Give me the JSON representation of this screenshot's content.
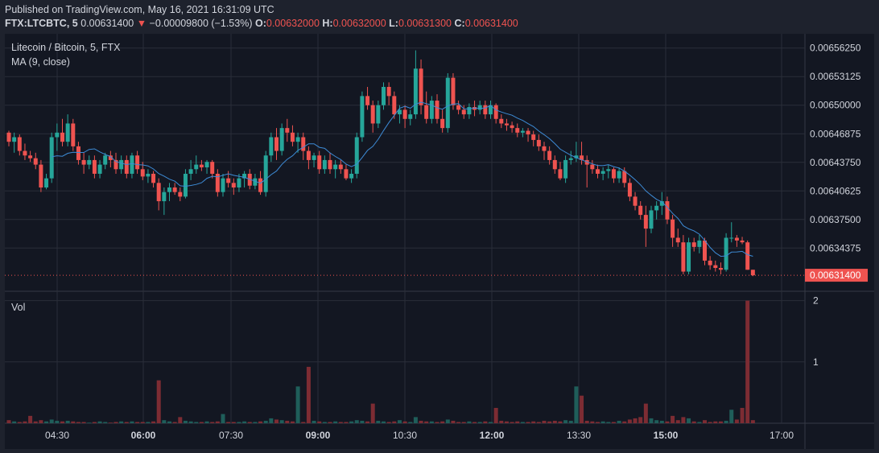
{
  "header": {
    "published": "Published on TradingView.com, May 16, 2021 16:31:09 UTC",
    "symbol": "FTX:LTCBTC, 5",
    "last": "0.00631400",
    "change_arrow": "▼",
    "change": "−0.00009800 (−1.53%)",
    "o_label": "O:",
    "o_value": "0.00632000",
    "h_label": "H:",
    "h_value": "0.00632000",
    "l_label": "L:",
    "l_value": "0.00631300",
    "c_label": "C:",
    "c_value": "0.00631400"
  },
  "legend": {
    "title": "Litecoin / Bitcoin, 5, FTX",
    "ma": "MA (9, close)",
    "volume": "Vol"
  },
  "colors": {
    "background": "#131722",
    "grid": "#2a2e39",
    "up": "#26a69a",
    "down": "#ef5350",
    "ma": "#3d8bd6",
    "vol_up": "#1f5e5a",
    "vol_down": "#7d2c33"
  },
  "chart_data": {
    "type": "candlestick",
    "price_axis": {
      "ticks": [
        "0.00656250",
        "0.00653125",
        "0.00650000",
        "0.00646875",
        "0.00643750",
        "0.00640625",
        "0.00637500",
        "0.00634375"
      ],
      "ylim": [
        0.0063,
        0.0065781
      ],
      "last_price_label": "0.00631400",
      "last_price": 0.006314
    },
    "time_axis": {
      "ticks": [
        "04:30",
        "06:00",
        "07:30",
        "09:00",
        "10:30",
        "12:00",
        "13:30",
        "15:00",
        "17:00"
      ],
      "bold": [
        false,
        true,
        false,
        true,
        false,
        true,
        false,
        true,
        false
      ]
    },
    "volume_axis": {
      "ticks": [
        "2",
        "1"
      ],
      "ylim": [
        0,
        2.1
      ]
    },
    "interval": "5",
    "candles": [
      {
        "o": 0.00647,
        "h": 0.006472,
        "l": 0.006455,
        "c": 0.00646,
        "v": 0.05
      },
      {
        "o": 0.00646,
        "h": 0.00647,
        "l": 0.006448,
        "c": 0.006465,
        "v": 0.03
      },
      {
        "o": 0.006465,
        "h": 0.006468,
        "l": 0.006445,
        "c": 0.00645,
        "v": 0.02
      },
      {
        "o": 0.00645,
        "h": 0.006458,
        "l": 0.00644,
        "c": 0.006445,
        "v": 0.03
      },
      {
        "o": 0.006445,
        "h": 0.00645,
        "l": 0.006438,
        "c": 0.006442,
        "v": 0.12
      },
      {
        "o": 0.006442,
        "h": 0.006448,
        "l": 0.00643,
        "c": 0.006435,
        "v": 0.03
      },
      {
        "o": 0.006435,
        "h": 0.00644,
        "l": 0.006405,
        "c": 0.00641,
        "v": 0.05
      },
      {
        "o": 0.00641,
        "h": 0.006425,
        "l": 0.006408,
        "c": 0.00642,
        "v": 0.03
      },
      {
        "o": 0.00642,
        "h": 0.00647,
        "l": 0.006415,
        "c": 0.006465,
        "v": 0.06
      },
      {
        "o": 0.006465,
        "h": 0.00648,
        "l": 0.00645,
        "c": 0.00647,
        "v": 0.04
      },
      {
        "o": 0.00647,
        "h": 0.006485,
        "l": 0.006455,
        "c": 0.00646,
        "v": 0.03
      },
      {
        "o": 0.00646,
        "h": 0.00649,
        "l": 0.006455,
        "c": 0.00648,
        "v": 0.04
      },
      {
        "o": 0.00648,
        "h": 0.006485,
        "l": 0.00645,
        "c": 0.006455,
        "v": 0.03
      },
      {
        "o": 0.006455,
        "h": 0.00646,
        "l": 0.006435,
        "c": 0.00644,
        "v": 0.02
      },
      {
        "o": 0.00644,
        "h": 0.006448,
        "l": 0.006425,
        "c": 0.006435,
        "v": 0.02
      },
      {
        "o": 0.006435,
        "h": 0.006445,
        "l": 0.00643,
        "c": 0.00644,
        "v": 0.01
      },
      {
        "o": 0.00644,
        "h": 0.006445,
        "l": 0.00642,
        "c": 0.006425,
        "v": 0.02
      },
      {
        "o": 0.006425,
        "h": 0.00644,
        "l": 0.00642,
        "c": 0.006435,
        "v": 0.03
      },
      {
        "o": 0.006435,
        "h": 0.006448,
        "l": 0.00643,
        "c": 0.006445,
        "v": 0.02
      },
      {
        "o": 0.006445,
        "h": 0.00645,
        "l": 0.006432,
        "c": 0.00644,
        "v": 0.01
      },
      {
        "o": 0.00644,
        "h": 0.006448,
        "l": 0.006425,
        "c": 0.00643,
        "v": 0.02
      },
      {
        "o": 0.00643,
        "h": 0.006445,
        "l": 0.006425,
        "c": 0.00644,
        "v": 0.03
      },
      {
        "o": 0.00644,
        "h": 0.006445,
        "l": 0.00642,
        "c": 0.006425,
        "v": 0.02
      },
      {
        "o": 0.006425,
        "h": 0.006448,
        "l": 0.00642,
        "c": 0.006445,
        "v": 0.03
      },
      {
        "o": 0.006445,
        "h": 0.00645,
        "l": 0.006425,
        "c": 0.00643,
        "v": 0.02
      },
      {
        "o": 0.00643,
        "h": 0.006438,
        "l": 0.006418,
        "c": 0.006422,
        "v": 0.02
      },
      {
        "o": 0.006422,
        "h": 0.00643,
        "l": 0.006415,
        "c": 0.006425,
        "v": 0.02
      },
      {
        "o": 0.006425,
        "h": 0.006428,
        "l": 0.00641,
        "c": 0.006415,
        "v": 0.03
      },
      {
        "o": 0.006415,
        "h": 0.00642,
        "l": 0.006385,
        "c": 0.006395,
        "v": 0.7
      },
      {
        "o": 0.006395,
        "h": 0.00641,
        "l": 0.00638,
        "c": 0.006405,
        "v": 0.05
      },
      {
        "o": 0.006405,
        "h": 0.006415,
        "l": 0.006395,
        "c": 0.00641,
        "v": 0.03
      },
      {
        "o": 0.00641,
        "h": 0.006415,
        "l": 0.006402,
        "c": 0.006405,
        "v": 0.02
      },
      {
        "o": 0.006405,
        "h": 0.00641,
        "l": 0.006395,
        "c": 0.0064,
        "v": 0.1
      },
      {
        "o": 0.0064,
        "h": 0.00643,
        "l": 0.006398,
        "c": 0.006425,
        "v": 0.04
      },
      {
        "o": 0.006425,
        "h": 0.00644,
        "l": 0.006418,
        "c": 0.00643,
        "v": 0.03
      },
      {
        "o": 0.00643,
        "h": 0.006445,
        "l": 0.006425,
        "c": 0.006435,
        "v": 0.02
      },
      {
        "o": 0.006435,
        "h": 0.00644,
        "l": 0.006428,
        "c": 0.006432,
        "v": 0.02
      },
      {
        "o": 0.006432,
        "h": 0.00644,
        "l": 0.006425,
        "c": 0.006438,
        "v": 0.03
      },
      {
        "o": 0.006438,
        "h": 0.00644,
        "l": 0.00642,
        "c": 0.006425,
        "v": 0.02
      },
      {
        "o": 0.006425,
        "h": 0.00643,
        "l": 0.0064,
        "c": 0.006405,
        "v": 0.03
      },
      {
        "o": 0.006405,
        "h": 0.006425,
        "l": 0.0064,
        "c": 0.00642,
        "v": 0.15
      },
      {
        "o": 0.00642,
        "h": 0.006428,
        "l": 0.00641,
        "c": 0.006415,
        "v": 0.02
      },
      {
        "o": 0.006415,
        "h": 0.00642,
        "l": 0.006402,
        "c": 0.00641,
        "v": 0.02
      },
      {
        "o": 0.00641,
        "h": 0.006425,
        "l": 0.006405,
        "c": 0.00642,
        "v": 0.02
      },
      {
        "o": 0.00642,
        "h": 0.006428,
        "l": 0.00641,
        "c": 0.006425,
        "v": 0.03
      },
      {
        "o": 0.006425,
        "h": 0.00643,
        "l": 0.006408,
        "c": 0.006412,
        "v": 0.02
      },
      {
        "o": 0.006412,
        "h": 0.006425,
        "l": 0.006408,
        "c": 0.00642,
        "v": 0.02
      },
      {
        "o": 0.00642,
        "h": 0.006428,
        "l": 0.006402,
        "c": 0.006405,
        "v": 0.03
      },
      {
        "o": 0.006405,
        "h": 0.00645,
        "l": 0.0064,
        "c": 0.006445,
        "v": 0.04
      },
      {
        "o": 0.006445,
        "h": 0.00647,
        "l": 0.006438,
        "c": 0.006465,
        "v": 0.08
      },
      {
        "o": 0.006465,
        "h": 0.006475,
        "l": 0.00644,
        "c": 0.00645,
        "v": 0.06
      },
      {
        "o": 0.00645,
        "h": 0.00648,
        "l": 0.006445,
        "c": 0.006475,
        "v": 0.05
      },
      {
        "o": 0.006475,
        "h": 0.006485,
        "l": 0.00646,
        "c": 0.00647,
        "v": 0.04
      },
      {
        "o": 0.00647,
        "h": 0.006478,
        "l": 0.006455,
        "c": 0.00646,
        "v": 0.03
      },
      {
        "o": 0.00646,
        "h": 0.00647,
        "l": 0.006448,
        "c": 0.006465,
        "v": 0.6
      },
      {
        "o": 0.006465,
        "h": 0.00647,
        "l": 0.00644,
        "c": 0.00645,
        "v": 0.02
      },
      {
        "o": 0.00645,
        "h": 0.006455,
        "l": 0.00643,
        "c": 0.00644,
        "v": 0.92
      },
      {
        "o": 0.00644,
        "h": 0.006448,
        "l": 0.006432,
        "c": 0.006445,
        "v": 0.04
      },
      {
        "o": 0.006445,
        "h": 0.00645,
        "l": 0.006425,
        "c": 0.00643,
        "v": 0.03
      },
      {
        "o": 0.00643,
        "h": 0.006445,
        "l": 0.006425,
        "c": 0.00644,
        "v": 0.02
      },
      {
        "o": 0.00644,
        "h": 0.006448,
        "l": 0.006425,
        "c": 0.00643,
        "v": 0.02
      },
      {
        "o": 0.00643,
        "h": 0.00644,
        "l": 0.00642,
        "c": 0.006435,
        "v": 0.03
      },
      {
        "o": 0.006435,
        "h": 0.00644,
        "l": 0.006425,
        "c": 0.00643,
        "v": 0.02
      },
      {
        "o": 0.00643,
        "h": 0.006435,
        "l": 0.006418,
        "c": 0.00642,
        "v": 0.02
      },
      {
        "o": 0.00642,
        "h": 0.00643,
        "l": 0.006415,
        "c": 0.006425,
        "v": 0.03
      },
      {
        "o": 0.006425,
        "h": 0.00647,
        "l": 0.00642,
        "c": 0.006465,
        "v": 0.05
      },
      {
        "o": 0.006465,
        "h": 0.006515,
        "l": 0.00646,
        "c": 0.00651,
        "v": 0.04
      },
      {
        "o": 0.00651,
        "h": 0.00652,
        "l": 0.006495,
        "c": 0.0065,
        "v": 0.03
      },
      {
        "o": 0.0065,
        "h": 0.006505,
        "l": 0.00647,
        "c": 0.00648,
        "v": 0.32
      },
      {
        "o": 0.00648,
        "h": 0.006505,
        "l": 0.006475,
        "c": 0.0065,
        "v": 0.04
      },
      {
        "o": 0.0065,
        "h": 0.006525,
        "l": 0.006495,
        "c": 0.00652,
        "v": 0.03
      },
      {
        "o": 0.00652,
        "h": 0.006525,
        "l": 0.0065,
        "c": 0.00651,
        "v": 0.02
      },
      {
        "o": 0.00651,
        "h": 0.006515,
        "l": 0.006485,
        "c": 0.00649,
        "v": 0.03
      },
      {
        "o": 0.00649,
        "h": 0.0065,
        "l": 0.00648,
        "c": 0.006495,
        "v": 0.05
      },
      {
        "o": 0.006495,
        "h": 0.0065,
        "l": 0.006475,
        "c": 0.006485,
        "v": 0.03
      },
      {
        "o": 0.006485,
        "h": 0.006495,
        "l": 0.006478,
        "c": 0.00649,
        "v": 0.02
      },
      {
        "o": 0.00649,
        "h": 0.00656,
        "l": 0.006485,
        "c": 0.00654,
        "v": 0.1
      },
      {
        "o": 0.00654,
        "h": 0.00655,
        "l": 0.00649,
        "c": 0.0065,
        "v": 0.04
      },
      {
        "o": 0.0065,
        "h": 0.006515,
        "l": 0.00648,
        "c": 0.006485,
        "v": 0.03
      },
      {
        "o": 0.006485,
        "h": 0.00651,
        "l": 0.00648,
        "c": 0.006505,
        "v": 0.03
      },
      {
        "o": 0.006505,
        "h": 0.006512,
        "l": 0.00648,
        "c": 0.006485,
        "v": 0.02
      },
      {
        "o": 0.006485,
        "h": 0.006495,
        "l": 0.00647,
        "c": 0.006475,
        "v": 0.03
      },
      {
        "o": 0.006475,
        "h": 0.006535,
        "l": 0.00647,
        "c": 0.00653,
        "v": 0.06
      },
      {
        "o": 0.00653,
        "h": 0.006535,
        "l": 0.006495,
        "c": 0.0065,
        "v": 0.04
      },
      {
        "o": 0.0065,
        "h": 0.006505,
        "l": 0.00649,
        "c": 0.006495,
        "v": 0.02
      },
      {
        "o": 0.006495,
        "h": 0.0065,
        "l": 0.006485,
        "c": 0.00649,
        "v": 0.02
      },
      {
        "o": 0.00649,
        "h": 0.006502,
        "l": 0.006485,
        "c": 0.006498,
        "v": 0.03
      },
      {
        "o": 0.006498,
        "h": 0.006505,
        "l": 0.006488,
        "c": 0.006495,
        "v": 0.02
      },
      {
        "o": 0.006495,
        "h": 0.006505,
        "l": 0.00649,
        "c": 0.0065,
        "v": 0.02
      },
      {
        "o": 0.0065,
        "h": 0.006505,
        "l": 0.006485,
        "c": 0.00649,
        "v": 0.03
      },
      {
        "o": 0.00649,
        "h": 0.006505,
        "l": 0.006485,
        "c": 0.0065,
        "v": 0.02
      },
      {
        "o": 0.0065,
        "h": 0.006502,
        "l": 0.00648,
        "c": 0.006485,
        "v": 0.25
      },
      {
        "o": 0.006485,
        "h": 0.00649,
        "l": 0.006475,
        "c": 0.00648,
        "v": 0.04
      },
      {
        "o": 0.00648,
        "h": 0.006485,
        "l": 0.006472,
        "c": 0.006478,
        "v": 0.03
      },
      {
        "o": 0.006478,
        "h": 0.006482,
        "l": 0.00647,
        "c": 0.006475,
        "v": 0.02
      },
      {
        "o": 0.006475,
        "h": 0.00648,
        "l": 0.006465,
        "c": 0.00647,
        "v": 0.03
      },
      {
        "o": 0.00647,
        "h": 0.006475,
        "l": 0.006465,
        "c": 0.006472,
        "v": 0.02
      },
      {
        "o": 0.006472,
        "h": 0.006475,
        "l": 0.00646,
        "c": 0.006468,
        "v": 0.02
      },
      {
        "o": 0.006468,
        "h": 0.006472,
        "l": 0.006455,
        "c": 0.006462,
        "v": 0.03
      },
      {
        "o": 0.006462,
        "h": 0.006468,
        "l": 0.00645,
        "c": 0.006455,
        "v": 0.02
      },
      {
        "o": 0.006455,
        "h": 0.00646,
        "l": 0.00644,
        "c": 0.00645,
        "v": 0.04
      },
      {
        "o": 0.00645,
        "h": 0.006455,
        "l": 0.006435,
        "c": 0.00644,
        "v": 0.03
      },
      {
        "o": 0.00644,
        "h": 0.006445,
        "l": 0.006425,
        "c": 0.00643,
        "v": 0.04
      },
      {
        "o": 0.00643,
        "h": 0.006438,
        "l": 0.006418,
        "c": 0.00642,
        "v": 0.03
      },
      {
        "o": 0.00642,
        "h": 0.006445,
        "l": 0.006415,
        "c": 0.00644,
        "v": 0.05
      },
      {
        "o": 0.00644,
        "h": 0.00645,
        "l": 0.006435,
        "c": 0.006442,
        "v": 0.04
      },
      {
        "o": 0.006442,
        "h": 0.00646,
        "l": 0.006438,
        "c": 0.006445,
        "v": 0.6
      },
      {
        "o": 0.006445,
        "h": 0.00646,
        "l": 0.006435,
        "c": 0.00644,
        "v": 0.45
      },
      {
        "o": 0.00644,
        "h": 0.006445,
        "l": 0.00641,
        "c": 0.006435,
        "v": 0.04
      },
      {
        "o": 0.006435,
        "h": 0.00644,
        "l": 0.006425,
        "c": 0.00643,
        "v": 0.03
      },
      {
        "o": 0.00643,
        "h": 0.006435,
        "l": 0.00642,
        "c": 0.006425,
        "v": 0.02
      },
      {
        "o": 0.006425,
        "h": 0.006432,
        "l": 0.006418,
        "c": 0.006428,
        "v": 0.03
      },
      {
        "o": 0.006428,
        "h": 0.006435,
        "l": 0.00642,
        "c": 0.00643,
        "v": 0.02
      },
      {
        "o": 0.00643,
        "h": 0.006432,
        "l": 0.006415,
        "c": 0.00642,
        "v": 0.02
      },
      {
        "o": 0.00642,
        "h": 0.006432,
        "l": 0.006415,
        "c": 0.006428,
        "v": 0.04
      },
      {
        "o": 0.006428,
        "h": 0.006432,
        "l": 0.00641,
        "c": 0.006415,
        "v": 0.03
      },
      {
        "o": 0.006415,
        "h": 0.00642,
        "l": 0.006395,
        "c": 0.0064,
        "v": 0.06
      },
      {
        "o": 0.0064,
        "h": 0.006405,
        "l": 0.006385,
        "c": 0.00639,
        "v": 0.08
      },
      {
        "o": 0.00639,
        "h": 0.006395,
        "l": 0.006375,
        "c": 0.00638,
        "v": 0.1
      },
      {
        "o": 0.00638,
        "h": 0.00639,
        "l": 0.006345,
        "c": 0.006365,
        "v": 0.32
      },
      {
        "o": 0.006365,
        "h": 0.00639,
        "l": 0.00636,
        "c": 0.006385,
        "v": 0.08
      },
      {
        "o": 0.006385,
        "h": 0.006395,
        "l": 0.006375,
        "c": 0.00639,
        "v": 0.05
      },
      {
        "o": 0.00639,
        "h": 0.006405,
        "l": 0.00638,
        "c": 0.006395,
        "v": 0.04
      },
      {
        "o": 0.006395,
        "h": 0.0064,
        "l": 0.00637,
        "c": 0.006375,
        "v": 0.03
      },
      {
        "o": 0.006375,
        "h": 0.00638,
        "l": 0.006345,
        "c": 0.006355,
        "v": 0.12
      },
      {
        "o": 0.006355,
        "h": 0.006365,
        "l": 0.006345,
        "c": 0.00635,
        "v": 0.05
      },
      {
        "o": 0.00635,
        "h": 0.006358,
        "l": 0.006315,
        "c": 0.006318,
        "v": 0.1
      },
      {
        "o": 0.006318,
        "h": 0.006355,
        "l": 0.006315,
        "c": 0.00635,
        "v": 0.08
      },
      {
        "o": 0.00635,
        "h": 0.006355,
        "l": 0.00634,
        "c": 0.006345,
        "v": 0.03
      },
      {
        "o": 0.006345,
        "h": 0.006358,
        "l": 0.006338,
        "c": 0.006352,
        "v": 0.02
      },
      {
        "o": 0.006352,
        "h": 0.006355,
        "l": 0.006325,
        "c": 0.00633,
        "v": 0.05
      },
      {
        "o": 0.00633,
        "h": 0.006335,
        "l": 0.00632,
        "c": 0.006325,
        "v": 0.02
      },
      {
        "o": 0.006325,
        "h": 0.00633,
        "l": 0.006318,
        "c": 0.006322,
        "v": 0.03
      },
      {
        "o": 0.006322,
        "h": 0.006328,
        "l": 0.006315,
        "c": 0.00632,
        "v": 0.03
      },
      {
        "o": 0.00632,
        "h": 0.00636,
        "l": 0.006318,
        "c": 0.006355,
        "v": 0.04
      },
      {
        "o": 0.006355,
        "h": 0.006372,
        "l": 0.00635,
        "c": 0.006355,
        "v": 0.22
      },
      {
        "o": 0.006355,
        "h": 0.006358,
        "l": 0.006345,
        "c": 0.006352,
        "v": 0.06
      },
      {
        "o": 0.006352,
        "h": 0.006356,
        "l": 0.006348,
        "c": 0.00635,
        "v": 0.25
      },
      {
        "o": 0.00635,
        "h": 0.006352,
        "l": 0.00632,
        "c": 0.00632,
        "v": 2.0
      },
      {
        "o": 0.00632,
        "h": 0.00632,
        "l": 0.006313,
        "c": 0.006314,
        "v": 0.05
      }
    ]
  }
}
